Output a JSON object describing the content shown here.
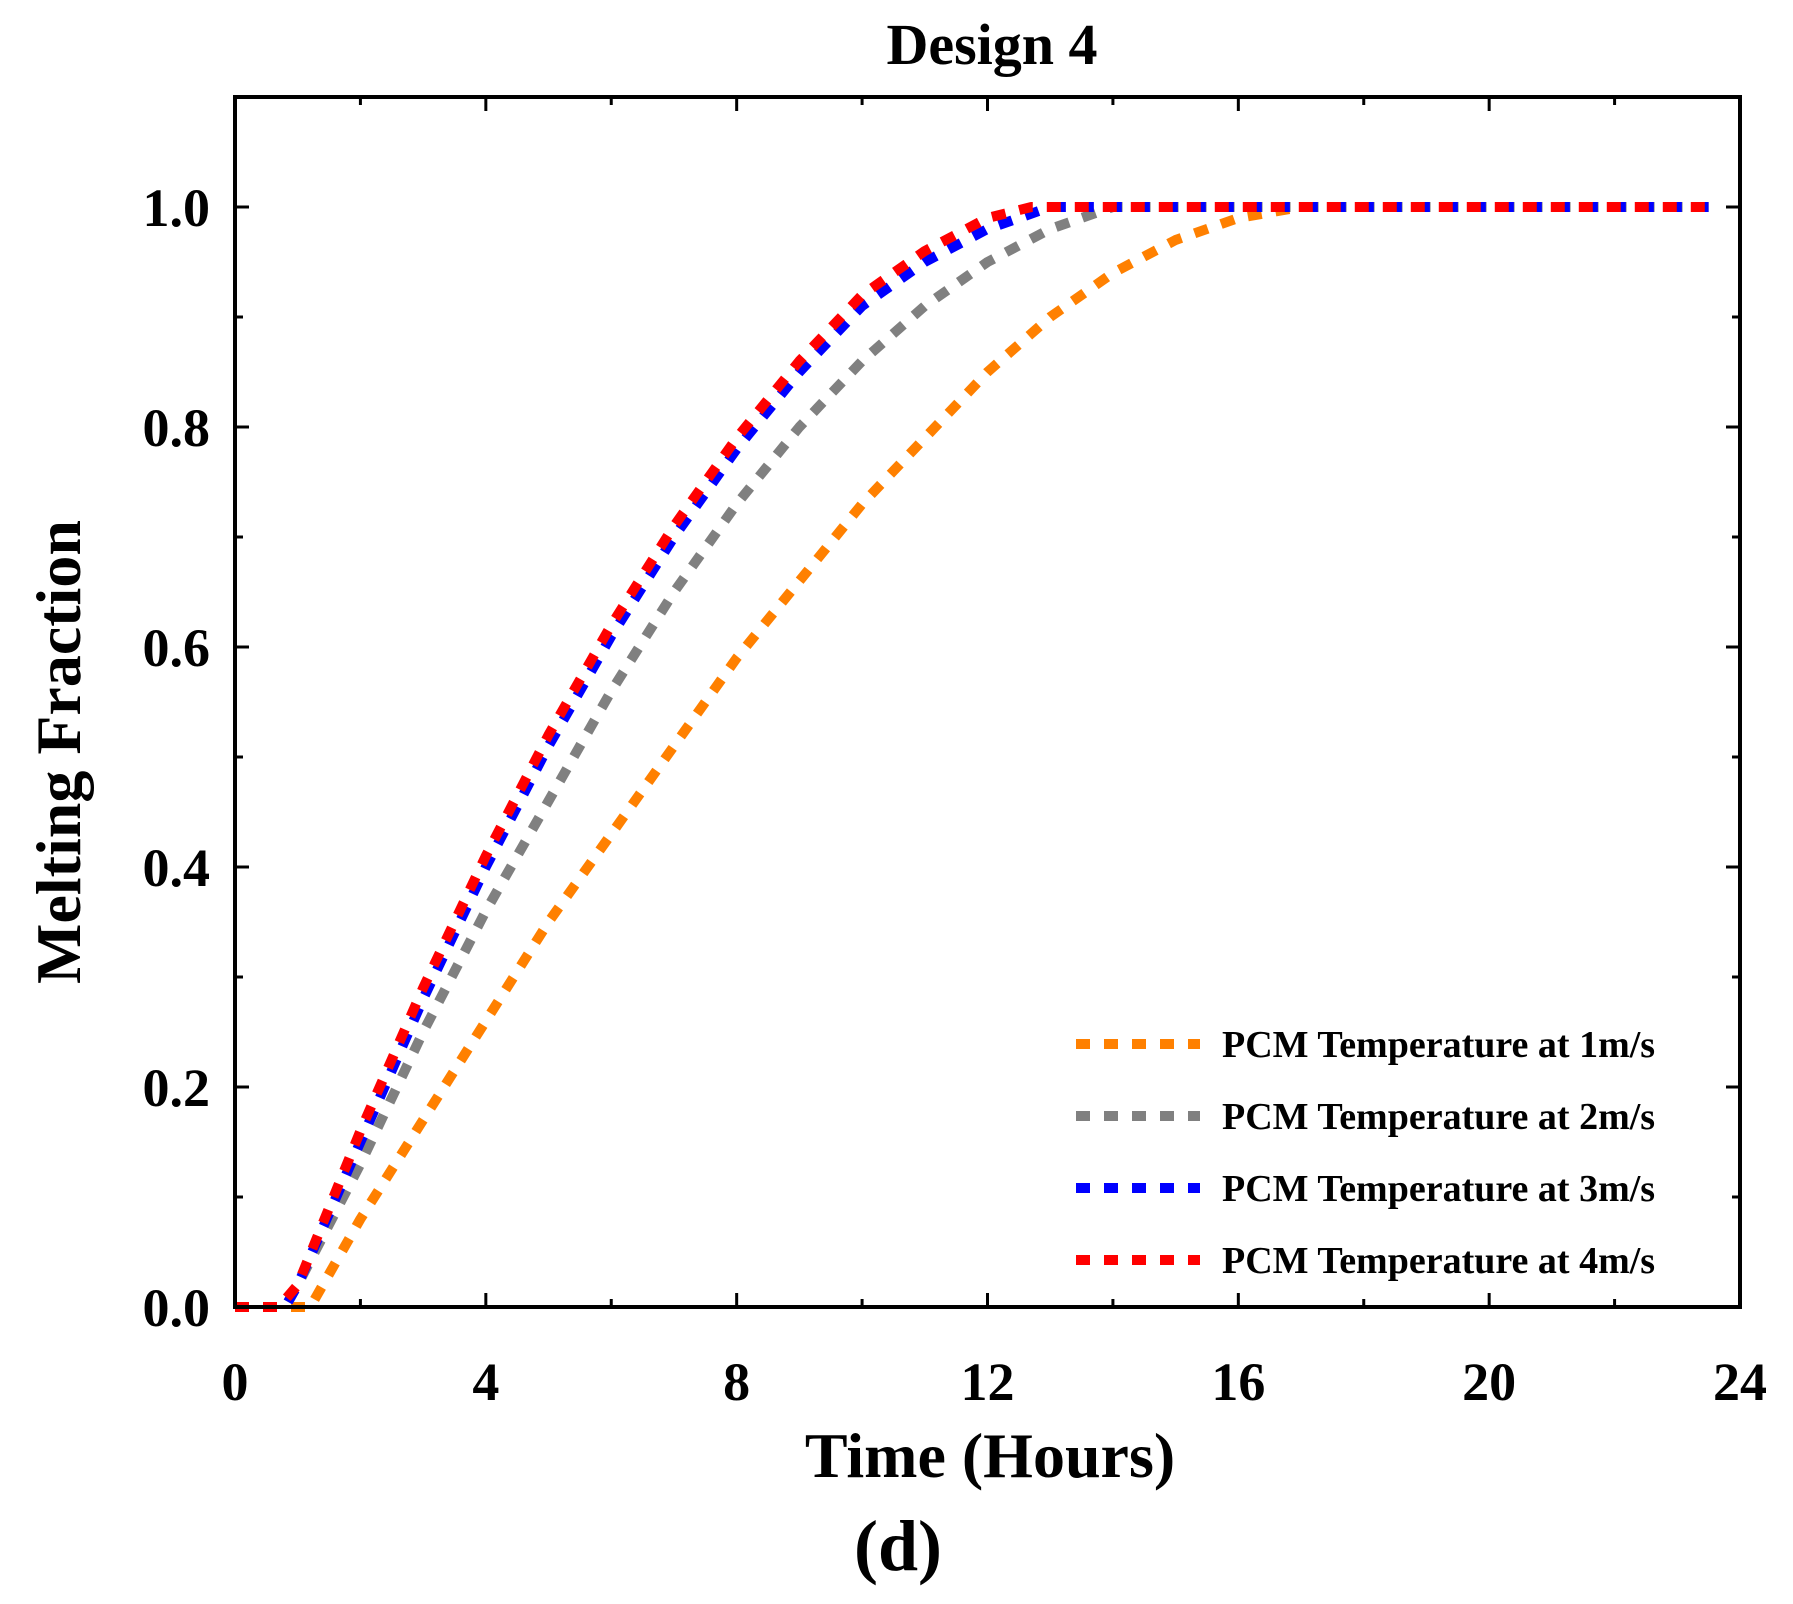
{
  "chart_data": {
    "type": "line",
    "title": "Design 4",
    "xlabel": "Time (Hours)",
    "ylabel": "Melting Fraction",
    "panel_label": "(d)",
    "xlim": [
      0,
      24
    ],
    "ylim": [
      0,
      1.1
    ],
    "xticks": [
      0,
      4,
      8,
      12,
      16,
      20,
      24
    ],
    "xtick_labels": [
      "0",
      "4",
      "8",
      "12",
      "16",
      "20",
      "24"
    ],
    "yticks": [
      0,
      0.2,
      0.4,
      0.6,
      0.8,
      1.0
    ],
    "ytick_labels": [
      "0.0",
      "0.2",
      "0.4",
      "0.6",
      "0.8",
      "1.0"
    ],
    "x_minor_step": 2,
    "y_minor_step": 0.1,
    "legend_position": "bottom-right",
    "series": [
      {
        "name": "PCM Temperature at 1m/s",
        "color": "#ff8000",
        "points": [
          [
            0,
            0
          ],
          [
            1,
            0
          ],
          [
            1.2,
            0
          ],
          [
            2,
            0.08
          ],
          [
            3,
            0.17
          ],
          [
            4,
            0.26
          ],
          [
            5,
            0.35
          ],
          [
            6,
            0.43
          ],
          [
            7,
            0.51
          ],
          [
            8,
            0.59
          ],
          [
            9,
            0.66
          ],
          [
            10,
            0.73
          ],
          [
            11,
            0.79
          ],
          [
            12,
            0.85
          ],
          [
            13,
            0.9
          ],
          [
            14,
            0.94
          ],
          [
            15,
            0.97
          ],
          [
            16,
            0.99
          ],
          [
            17,
            1.0
          ],
          [
            18,
            1.0
          ],
          [
            20,
            1.0
          ],
          [
            22,
            1.0
          ],
          [
            23.5,
            1.0
          ]
        ]
      },
      {
        "name": "PCM Temperature at 2m/s",
        "color": "#808080",
        "points": [
          [
            0,
            0
          ],
          [
            0.8,
            0
          ],
          [
            1,
            0.02
          ],
          [
            2,
            0.13
          ],
          [
            3,
            0.25
          ],
          [
            4,
            0.36
          ],
          [
            5,
            0.46
          ],
          [
            6,
            0.56
          ],
          [
            7,
            0.65
          ],
          [
            8,
            0.73
          ],
          [
            9,
            0.8
          ],
          [
            10,
            0.86
          ],
          [
            11,
            0.91
          ],
          [
            12,
            0.95
          ],
          [
            13,
            0.98
          ],
          [
            14,
            1.0
          ],
          [
            16,
            1.0
          ],
          [
            18,
            1.0
          ],
          [
            20,
            1.0
          ],
          [
            22,
            1.0
          ],
          [
            23.5,
            1.0
          ]
        ]
      },
      {
        "name": "PCM Temperature at 3m/s",
        "color": "#0000ff",
        "points": [
          [
            0,
            0
          ],
          [
            0.8,
            0
          ],
          [
            1,
            0.02
          ],
          [
            2,
            0.15
          ],
          [
            3,
            0.28
          ],
          [
            4,
            0.4
          ],
          [
            5,
            0.51
          ],
          [
            6,
            0.61
          ],
          [
            7,
            0.7
          ],
          [
            8,
            0.78
          ],
          [
            9,
            0.85
          ],
          [
            10,
            0.91
          ],
          [
            11,
            0.95
          ],
          [
            12,
            0.98
          ],
          [
            13,
            1.0
          ],
          [
            14,
            1.0
          ],
          [
            16,
            1.0
          ],
          [
            18,
            1.0
          ],
          [
            20,
            1.0
          ],
          [
            22,
            1.0
          ],
          [
            23.5,
            1.0
          ]
        ]
      },
      {
        "name": "PCM Temperature at 4m/s",
        "color": "#ff0000",
        "points": [
          [
            0,
            0
          ],
          [
            0.7,
            0
          ],
          [
            1,
            0.02
          ],
          [
            2,
            0.16
          ],
          [
            3,
            0.29
          ],
          [
            4,
            0.41
          ],
          [
            5,
            0.52
          ],
          [
            6,
            0.62
          ],
          [
            7,
            0.71
          ],
          [
            8,
            0.79
          ],
          [
            9,
            0.86
          ],
          [
            10,
            0.92
          ],
          [
            11,
            0.96
          ],
          [
            12,
            0.99
          ],
          [
            12.7,
            1.0
          ],
          [
            14,
            1.0
          ],
          [
            16,
            1.0
          ],
          [
            18,
            1.0
          ],
          [
            20,
            1.0
          ],
          [
            22,
            1.0
          ],
          [
            23.5,
            1.0
          ]
        ]
      }
    ]
  }
}
